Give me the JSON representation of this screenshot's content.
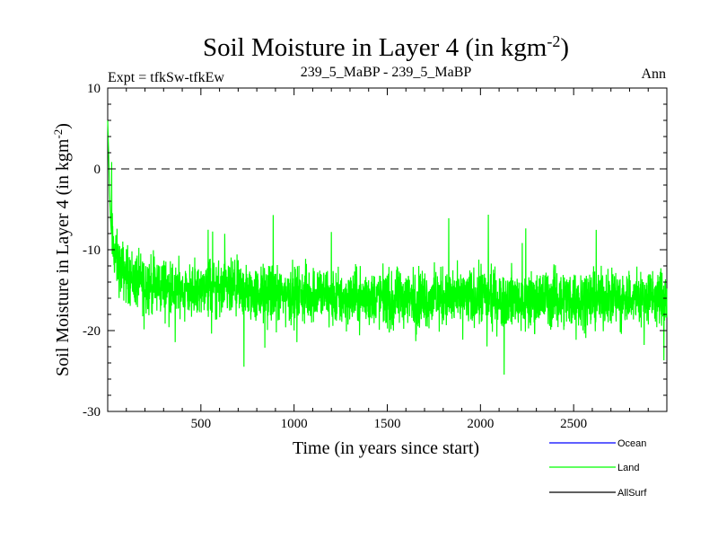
{
  "chart_data": {
    "type": "line",
    "title_main": "Soil Moisture in Layer 4 (in kgm",
    "title_sup": "-2",
    "title_close": ")",
    "subtitle_left": "Expt = tfkSw-tfkEw",
    "subtitle_center": "239_5_MaBP - 239_5_MaBP",
    "subtitle_right": "Ann",
    "xlabel": "Time (in years since start)",
    "ylabel_main": "Soil Moisture in Layer 4 (in kgm",
    "ylabel_sup": "-2",
    "ylabel_close": ")",
    "xlim": [
      0,
      3000
    ],
    "ylim": [
      -30,
      10
    ],
    "x_ticks": [
      500,
      1000,
      1500,
      2000,
      2500
    ],
    "y_ticks": [
      10,
      0,
      -10,
      -20,
      -30
    ],
    "zero_line": 0,
    "series": [
      {
        "name": "Land",
        "color": "#00ff00",
        "x": [
          0,
          5,
          10,
          15,
          20,
          30,
          45,
          60,
          80,
          100,
          130,
          160,
          200,
          250,
          300,
          350,
          400,
          450,
          500,
          540,
          560,
          600,
          650,
          700,
          750,
          800,
          850,
          900,
          950,
          1000,
          1050,
          1100,
          1130,
          1150,
          1200,
          1250,
          1300,
          1350,
          1400,
          1450,
          1500,
          1530,
          1550,
          1600,
          1650,
          1700,
          1750,
          1800,
          1850,
          1900,
          1950,
          2000,
          2020,
          2050,
          2100,
          2150,
          2200,
          2250,
          2300,
          2350,
          2400,
          2450,
          2500,
          2550,
          2600,
          2650,
          2700,
          2750,
          2800,
          2850,
          2900,
          2950,
          3000
        ],
        "values": [
          6,
          2,
          -3,
          -6,
          -8,
          -10,
          -11,
          -12,
          -12.5,
          -13,
          -13.5,
          -14,
          -14,
          -14.5,
          -14.5,
          -15,
          -15,
          -15,
          -15,
          -14.5,
          -15,
          -15,
          -15,
          -15,
          -15.5,
          -15.5,
          -15.5,
          -15.5,
          -15.5,
          -15.5,
          -15.5,
          -15.5,
          -15,
          -15.5,
          -16,
          -16,
          -16,
          -16,
          -16,
          -16,
          -16,
          -17,
          -16,
          -16,
          -16,
          -16,
          -16,
          -16,
          -16,
          -16,
          -16,
          -15.5,
          -16,
          -16,
          -16,
          -16,
          -16,
          -16.5,
          -16,
          -16,
          -16,
          -16,
          -16,
          -16,
          -16,
          -16,
          -16,
          -16,
          -16,
          -16,
          -16,
          -16,
          -16
        ],
        "noise_amplitude": 2.2
      },
      {
        "name": "Ocean",
        "color": "#0000ff",
        "x": [],
        "values": []
      },
      {
        "name": "AllSurf",
        "color": "#000000",
        "x": [],
        "values": []
      }
    ],
    "legend": [
      {
        "label": "Ocean",
        "color": "#0000ff"
      },
      {
        "label": "Land",
        "color": "#00ff00"
      },
      {
        "label": "AllSurf",
        "color": "#000000"
      }
    ],
    "legend_position": "bottom-right"
  }
}
